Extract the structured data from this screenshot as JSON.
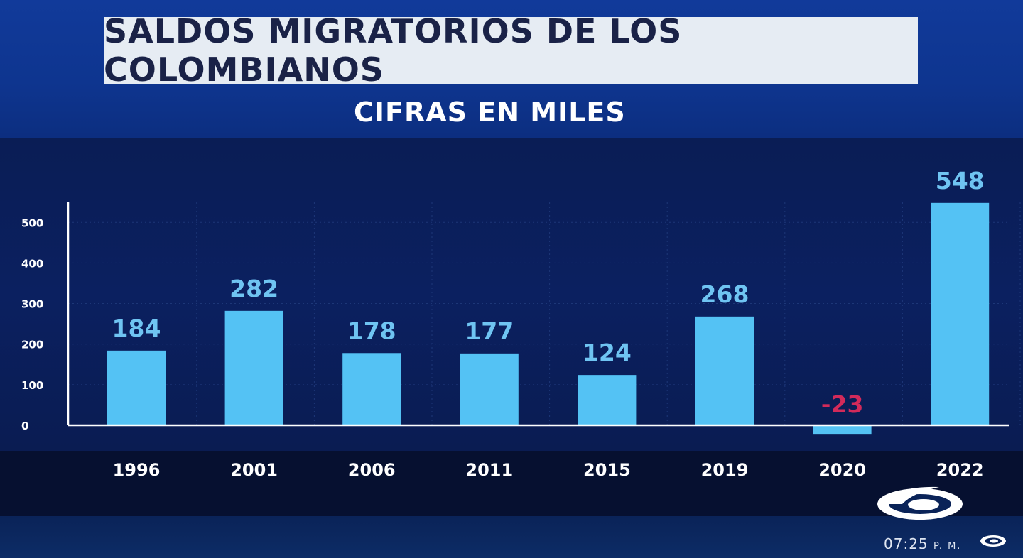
{
  "header": {
    "title": "SALDOS MIGRATORIOS DE LOS COLOMBIANOS",
    "subtitle": "CIFRAS EN MILES"
  },
  "broadcast": {
    "time": "07:25",
    "ampm": "P. M.",
    "logo_icon": "caracol-tv-logo-icon"
  },
  "colors": {
    "bar": "#54c2f4",
    "positive_label": "#6fc4f2",
    "negative_label": "#d22a5a",
    "axis": "#ffffff"
  },
  "chart_data": {
    "type": "bar",
    "title": "SALDOS MIGRATORIOS DE LOS COLOMBIANOS",
    "subtitle": "CIFRAS EN MILES",
    "categories": [
      "1996",
      "2001",
      "2006",
      "2011",
      "2015",
      "2019",
      "2020",
      "2022"
    ],
    "values": [
      184,
      282,
      178,
      177,
      124,
      268,
      -23,
      548
    ],
    "value_labels": [
      "184",
      "282",
      "178",
      "177",
      "124",
      "268",
      "-23",
      "548"
    ],
    "y_ticks": [
      0,
      100,
      200,
      300,
      400,
      500
    ],
    "y_tick_labels": [
      "0",
      "100",
      "200",
      "300",
      "400",
      "500"
    ],
    "ylim": [
      -30,
      550
    ],
    "xlabel": "",
    "ylabel": "",
    "grid": true
  }
}
